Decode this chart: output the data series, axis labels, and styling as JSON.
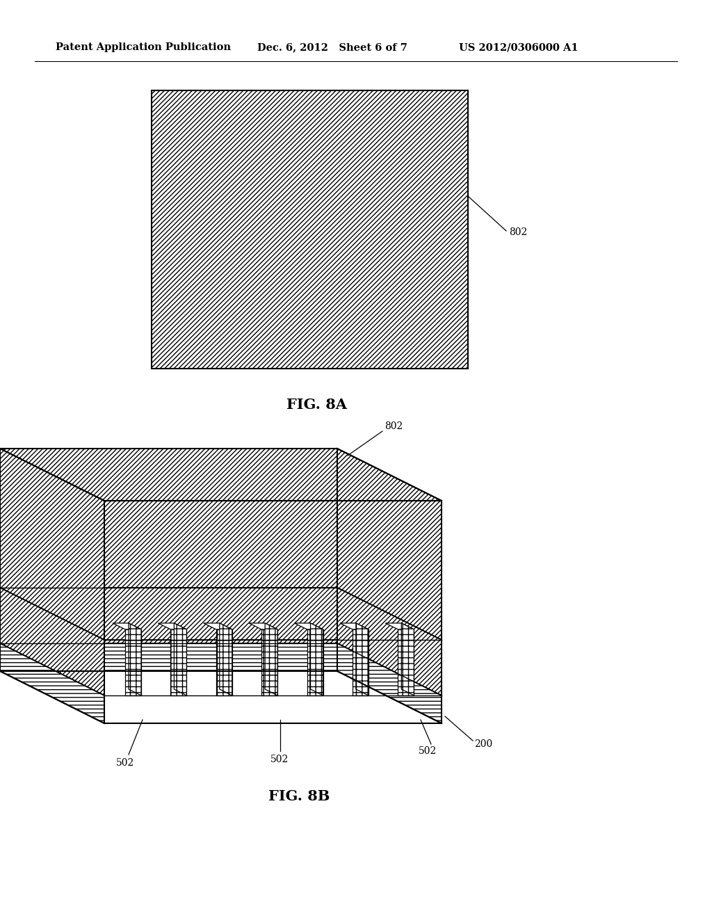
{
  "header_left": "Patent Application Publication",
  "header_mid": "Dec. 6, 2012   Sheet 6 of 7",
  "header_right": "US 2012/0306000 A1",
  "fig8a_label": "FIG. 8A",
  "fig8b_label": "FIG. 8B",
  "label_802_8a": "802",
  "label_802_8b": "802",
  "label_502a": "502",
  "label_502b": "502",
  "label_502c": "502",
  "label_200": "200",
  "bg_color": "#ffffff",
  "line_color": "#000000"
}
